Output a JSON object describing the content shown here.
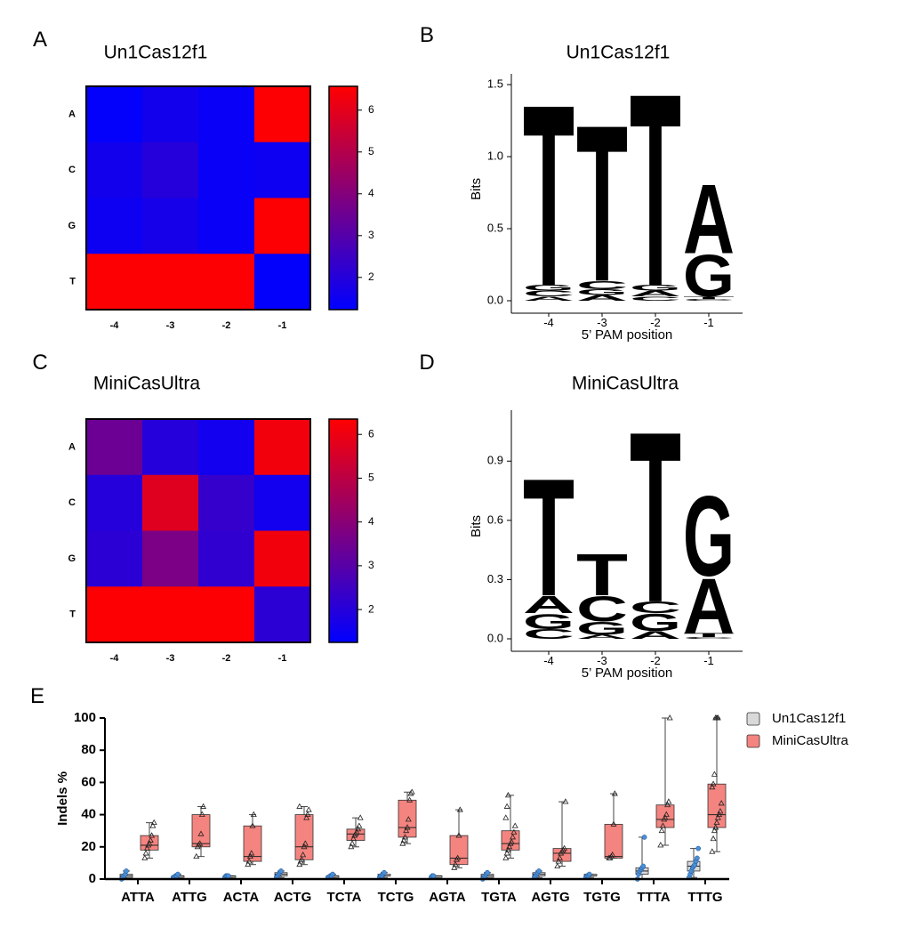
{
  "chart_data": [
    {
      "type": "heatmap",
      "panel": "A",
      "title": "Un1Cas12f1",
      "columns": [
        "-4",
        "-3",
        "-2",
        "-1"
      ],
      "rows": [
        "A",
        "C",
        "G",
        "T"
      ],
      "z": [
        [
          1.3,
          1.6,
          1.4,
          6.5
        ],
        [
          1.6,
          2.0,
          1.4,
          1.5
        ],
        [
          1.5,
          1.7,
          1.4,
          6.5
        ],
        [
          6.5,
          6.5,
          6.5,
          1.3
        ]
      ],
      "zlim": [
        1.23,
        6.57
      ],
      "zticks": [
        2,
        3,
        4,
        5,
        6
      ],
      "colorscale": [
        "#0000ff",
        "#ff0000"
      ]
    },
    {
      "type": "logo",
      "panel": "B",
      "title": "Un1Cas12f1",
      "xlabel": "5’ PAM position",
      "ylabel": "Bits",
      "categories": [
        "-4",
        "-3",
        "-2",
        "-1"
      ],
      "stacks": [
        [
          {
            "letter": "A",
            "value": 0.03
          },
          {
            "letter": "C",
            "value": 0.04
          },
          {
            "letter": "G",
            "value": 0.04
          },
          {
            "letter": "T",
            "value": 1.31
          }
        ],
        [
          {
            "letter": "A",
            "value": 0.04
          },
          {
            "letter": "G",
            "value": 0.04
          },
          {
            "letter": "C",
            "value": 0.06
          },
          {
            "letter": "T",
            "value": 1.13
          }
        ],
        [
          {
            "letter": "C",
            "value": 0.03
          },
          {
            "letter": "A",
            "value": 0.04
          },
          {
            "letter": "G",
            "value": 0.04
          },
          {
            "letter": "T",
            "value": 1.39
          }
        ],
        [
          {
            "letter": "C",
            "value": 0.01
          },
          {
            "letter": "T",
            "value": 0.02
          },
          {
            "letter": "G",
            "value": 0.3
          },
          {
            "letter": "A",
            "value": 0.5
          }
        ]
      ],
      "letter_colors": {
        "A": "#1a9145",
        "C": "#2a5aa8",
        "G": "#f0a935",
        "T": "#d12a3a"
      },
      "ylim": [
        0,
        1.55
      ],
      "yticks": [
        {
          "value": 0,
          "label": "0.0"
        },
        0.5,
        {
          "value": 1,
          "label": "1.0"
        },
        1.5
      ]
    },
    {
      "type": "heatmap",
      "panel": "C",
      "title": "MiniCasUltra",
      "columns": [
        "-4",
        "-3",
        "-2",
        "-1"
      ],
      "rows": [
        "A",
        "C",
        "G",
        "T"
      ],
      "z": [
        [
          3.4,
          2.0,
          1.6,
          6.1
        ],
        [
          2.0,
          5.7,
          2.3,
          1.6
        ],
        [
          2.1,
          3.7,
          2.2,
          6.1
        ],
        [
          6.3,
          6.3,
          6.3,
          2.1
        ]
      ],
      "zlim": [
        1.25,
        6.35
      ],
      "zticks": [
        2,
        3,
        4,
        5,
        6
      ],
      "colorscale": [
        "#0000ff",
        "#ff0000"
      ]
    },
    {
      "type": "logo",
      "panel": "D",
      "title": "MiniCasUltra",
      "xlabel": "5’ PAM position",
      "ylabel": "Bits",
      "categories": [
        "-4",
        "-3",
        "-2",
        "-1"
      ],
      "stacks": [
        [
          {
            "letter": "C",
            "value": 0.05
          },
          {
            "letter": "G",
            "value": 0.08
          },
          {
            "letter": "A",
            "value": 0.09
          },
          {
            "letter": "T",
            "value": 0.62
          }
        ],
        [
          {
            "letter": "A",
            "value": 0.02
          },
          {
            "letter": "G",
            "value": 0.07
          },
          {
            "letter": "C",
            "value": 0.13
          },
          {
            "letter": "T",
            "value": 0.22
          }
        ],
        [
          {
            "letter": "A",
            "value": 0.04
          },
          {
            "letter": "G",
            "value": 0.09
          },
          {
            "letter": "C",
            "value": 0.06
          },
          {
            "letter": "T",
            "value": 0.9
          }
        ],
        [
          {
            "letter": "C",
            "value": 0.01
          },
          {
            "letter": "T",
            "value": 0.02
          },
          {
            "letter": "A",
            "value": 0.29
          },
          {
            "letter": "G",
            "value": 0.42
          }
        ]
      ],
      "letter_colors": {
        "A": "#1a9145",
        "C": "#2a5aa8",
        "G": "#f0a935",
        "T": "#d12a3a"
      },
      "ylim": [
        0,
        1.14
      ],
      "yticks": [
        {
          "value": 0,
          "label": "0.0"
        },
        0.3,
        0.6,
        0.9
      ]
    },
    {
      "type": "box",
      "panel": "E",
      "ylabel": "Indels %",
      "categories": [
        "ATTA",
        "ATTG",
        "ACTA",
        "ACTG",
        "TCTA",
        "TCTG",
        "AGTA",
        "TGTA",
        "AGTG",
        "TGTG",
        "TTTA",
        "TTTG"
      ],
      "ylim": [
        0,
        100
      ],
      "yticks": [
        0,
        20,
        40,
        60,
        80,
        100
      ],
      "series": [
        {
          "name": "Un1Cas12f1",
          "color": "#d9d9d9",
          "point_color": "#4a8fd8",
          "marker": "circle",
          "boxes": [
            {
              "min": 0,
              "q1": 1,
              "median": 2,
              "q3": 3,
              "max": 5
            },
            {
              "min": 1,
              "q1": 1,
              "median": 2,
              "q3": 2,
              "max": 3
            },
            {
              "min": 1,
              "q1": 1,
              "median": 2,
              "q3": 2,
              "max": 2
            },
            {
              "min": 1,
              "q1": 2,
              "median": 3,
              "q3": 4,
              "max": 5
            },
            {
              "min": 1,
              "q1": 1,
              "median": 2,
              "q3": 2,
              "max": 3
            },
            {
              "min": 1,
              "q1": 2,
              "median": 2,
              "q3": 3,
              "max": 4
            },
            {
              "min": 1,
              "q1": 1,
              "median": 2,
              "q3": 2,
              "max": 2
            },
            {
              "min": 0,
              "q1": 1,
              "median": 2,
              "q3": 3,
              "max": 4
            },
            {
              "min": 1,
              "q1": 2,
              "median": 3,
              "q3": 4,
              "max": 5
            },
            {
              "min": 1,
              "q1": 2,
              "median": 2,
              "q3": 3,
              "max": 3
            },
            {
              "min": 0,
              "q1": 3,
              "median": 5,
              "q3": 7,
              "max": 26
            },
            {
              "min": 1,
              "q1": 5,
              "median": 8,
              "q3": 11,
              "max": 19
            }
          ],
          "points": [
            [
              0,
              1,
              2,
              3,
              5
            ],
            [
              1,
              1,
              2,
              2,
              3
            ],
            [
              1,
              2,
              2,
              2
            ],
            [
              1,
              2,
              3,
              4,
              5
            ],
            [
              1,
              1,
              2,
              2,
              3
            ],
            [
              1,
              2,
              2,
              3,
              4
            ],
            [
              1,
              2,
              2
            ],
            [
              0,
              1,
              2,
              3,
              4
            ],
            [
              1,
              2,
              3,
              4,
              5
            ],
            [
              1,
              2,
              2,
              3
            ],
            [
              0,
              3,
              5,
              6,
              7,
              8,
              26
            ],
            [
              1,
              3,
              5,
              7,
              8,
              9,
              11,
              13,
              19
            ]
          ]
        },
        {
          "name": "MiniCasUltra",
          "color": "#f4847f",
          "point_color": "#222222",
          "marker": "triangle",
          "boxes": [
            {
              "min": 13,
              "q1": 18,
              "median": 21,
              "q3": 27,
              "max": 35
            },
            {
              "min": 14,
              "q1": 20,
              "median": 22,
              "q3": 40,
              "max": 45
            },
            {
              "min": 9,
              "q1": 11,
              "median": 14,
              "q3": 33,
              "max": 40
            },
            {
              "min": 9,
              "q1": 12,
              "median": 20,
              "q3": 40,
              "max": 45
            },
            {
              "min": 20,
              "q1": 24,
              "median": 28,
              "q3": 31,
              "max": 38
            },
            {
              "min": 22,
              "q1": 26,
              "median": 32,
              "q3": 49,
              "max": 54
            },
            {
              "min": 7,
              "q1": 9,
              "median": 13,
              "q3": 27,
              "max": 43
            },
            {
              "min": 13,
              "q1": 18,
              "median": 22,
              "q3": 30,
              "max": 52
            },
            {
              "min": 8,
              "q1": 11,
              "median": 16,
              "q3": 19,
              "max": 48
            },
            {
              "min": 13,
              "q1": 13,
              "median": 14,
              "q3": 34,
              "max": 53
            },
            {
              "min": 21,
              "q1": 32,
              "median": 37,
              "q3": 46,
              "max": 100
            },
            {
              "min": 17,
              "q1": 32,
              "median": 40,
              "q3": 59,
              "max": 100
            }
          ],
          "points": [
            [
              13,
              16,
              19,
              21,
              22,
              24,
              27,
              33,
              35
            ],
            [
              14,
              20,
              21,
              22,
              28,
              40,
              45
            ],
            [
              9,
              11,
              14,
              16,
              33,
              40
            ],
            [
              9,
              11,
              12,
              15,
              20,
              22,
              38,
              40,
              43,
              45
            ],
            [
              20,
              22,
              25,
              27,
              28,
              29,
              31,
              33,
              38
            ],
            [
              22,
              24,
              26,
              30,
              32,
              37,
              49,
              53,
              54
            ],
            [
              7,
              9,
              12,
              13,
              27,
              43
            ],
            [
              13,
              16,
              18,
              20,
              22,
              23,
              26,
              29,
              33,
              38,
              45,
              52
            ],
            [
              8,
              11,
              13,
              16,
              17,
              18,
              19,
              48
            ],
            [
              13,
              13,
              14,
              15,
              34,
              53
            ],
            [
              21,
              30,
              33,
              37,
              38,
              40,
              46,
              48,
              100
            ],
            [
              17,
              25,
              30,
              32,
              35,
              38,
              40,
              42,
              47,
              57,
              59,
              65,
              100,
              100,
              100
            ]
          ]
        }
      ]
    }
  ]
}
